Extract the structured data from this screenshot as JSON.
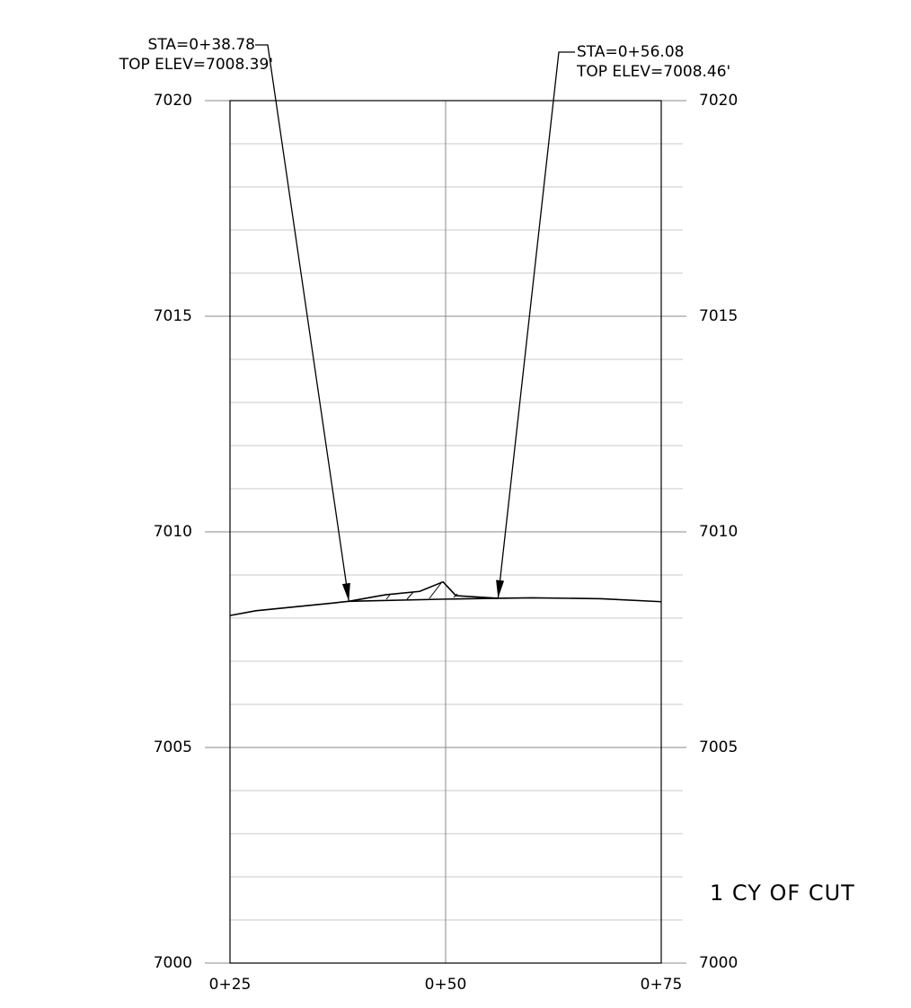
{
  "chart_data": {
    "type": "line",
    "xlim": [
      25,
      75
    ],
    "xticks": [
      {
        "value": 25,
        "label": "0+25"
      },
      {
        "value": 50,
        "label": "0+50"
      },
      {
        "value": 75,
        "label": "0+75"
      }
    ],
    "ylim": [
      7000,
      7020
    ],
    "yticks": [
      7000,
      7005,
      7010,
      7015,
      7020
    ],
    "minor_yticks": [
      7001,
      7002,
      7003,
      7004,
      7006,
      7007,
      7008,
      7009,
      7011,
      7012,
      7013,
      7014,
      7016,
      7017,
      7018,
      7019
    ],
    "grid": true,
    "series": [
      {
        "color": "#000000",
        "x": [
          25,
          28,
          37,
          38.78,
          50,
          56.08,
          60,
          68,
          75
        ],
        "values": [
          7008.06,
          7008.17,
          7008.35,
          7008.39,
          7008.44,
          7008.46,
          7008.47,
          7008.45,
          7008.38
        ]
      },
      {
        "color": "#000000",
        "x": [
          38.78,
          43,
          47,
          49.7,
          51.2,
          56.08
        ],
        "values": [
          7008.39,
          7008.54,
          7008.62,
          7008.84,
          7008.52,
          7008.46
        ]
      }
    ],
    "annotations": [
      {
        "lines": [
          "STA=0+38.78",
          "TOP ELEV=7008.39'"
        ],
        "x": 38.78,
        "y": 7008.39
      },
      {
        "lines": [
          "STA=0+56.08",
          "TOP ELEV=7008.46'"
        ],
        "x": 56.08,
        "y": 7008.46
      }
    ],
    "note": "1 CY OF CUT"
  }
}
